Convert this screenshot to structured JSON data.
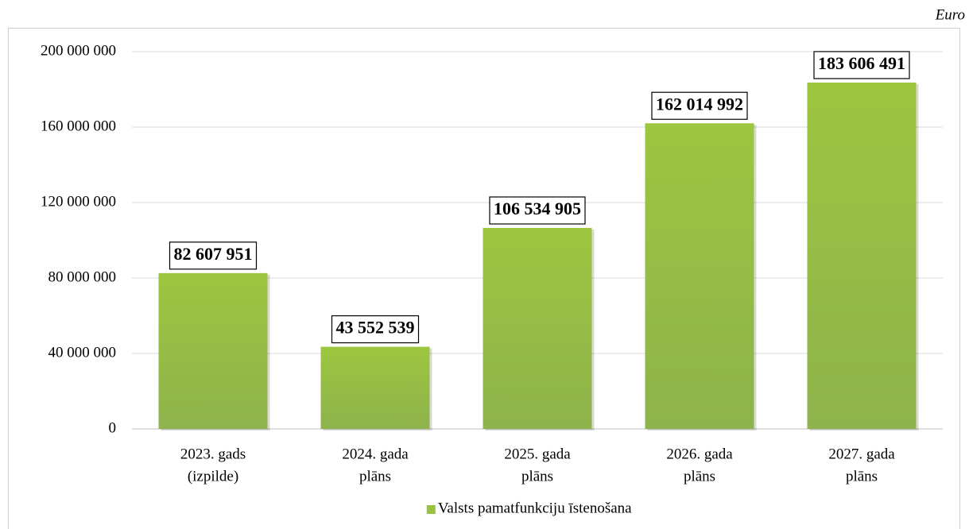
{
  "chart_data": {
    "type": "bar",
    "unit": "Euro",
    "categories": [
      [
        "2023. gads",
        "(izpilde)"
      ],
      [
        "2024. gada",
        "plāns"
      ],
      [
        "2025. gada",
        "plāns"
      ],
      [
        "2026. gada",
        "plāns"
      ],
      [
        "2027. gada",
        "plāns"
      ]
    ],
    "series": [
      {
        "name": "Valsts pamatfunkciju īstenošana",
        "color": "#9bc23d",
        "values": [
          82607951,
          43552539,
          106534905,
          162014992,
          183606491
        ],
        "value_labels": [
          "82 607 951",
          "43 552 539",
          "106 534 905",
          "162 014 992",
          "183 606 491"
        ]
      }
    ],
    "ylim": [
      0,
      200000000
    ],
    "yticks": [
      0,
      {
        "value": 40000000,
        "label": "40 000 000"
      },
      {
        "value": 80000000,
        "label": "80 000 000"
      },
      {
        "value": 120000000,
        "label": "120 000 000"
      },
      {
        "value": 160000000,
        "label": "160 000 000"
      },
      {
        "value": 200000000,
        "label": "200 000 000"
      }
    ],
    "grid": true,
    "legend": "bottom"
  }
}
